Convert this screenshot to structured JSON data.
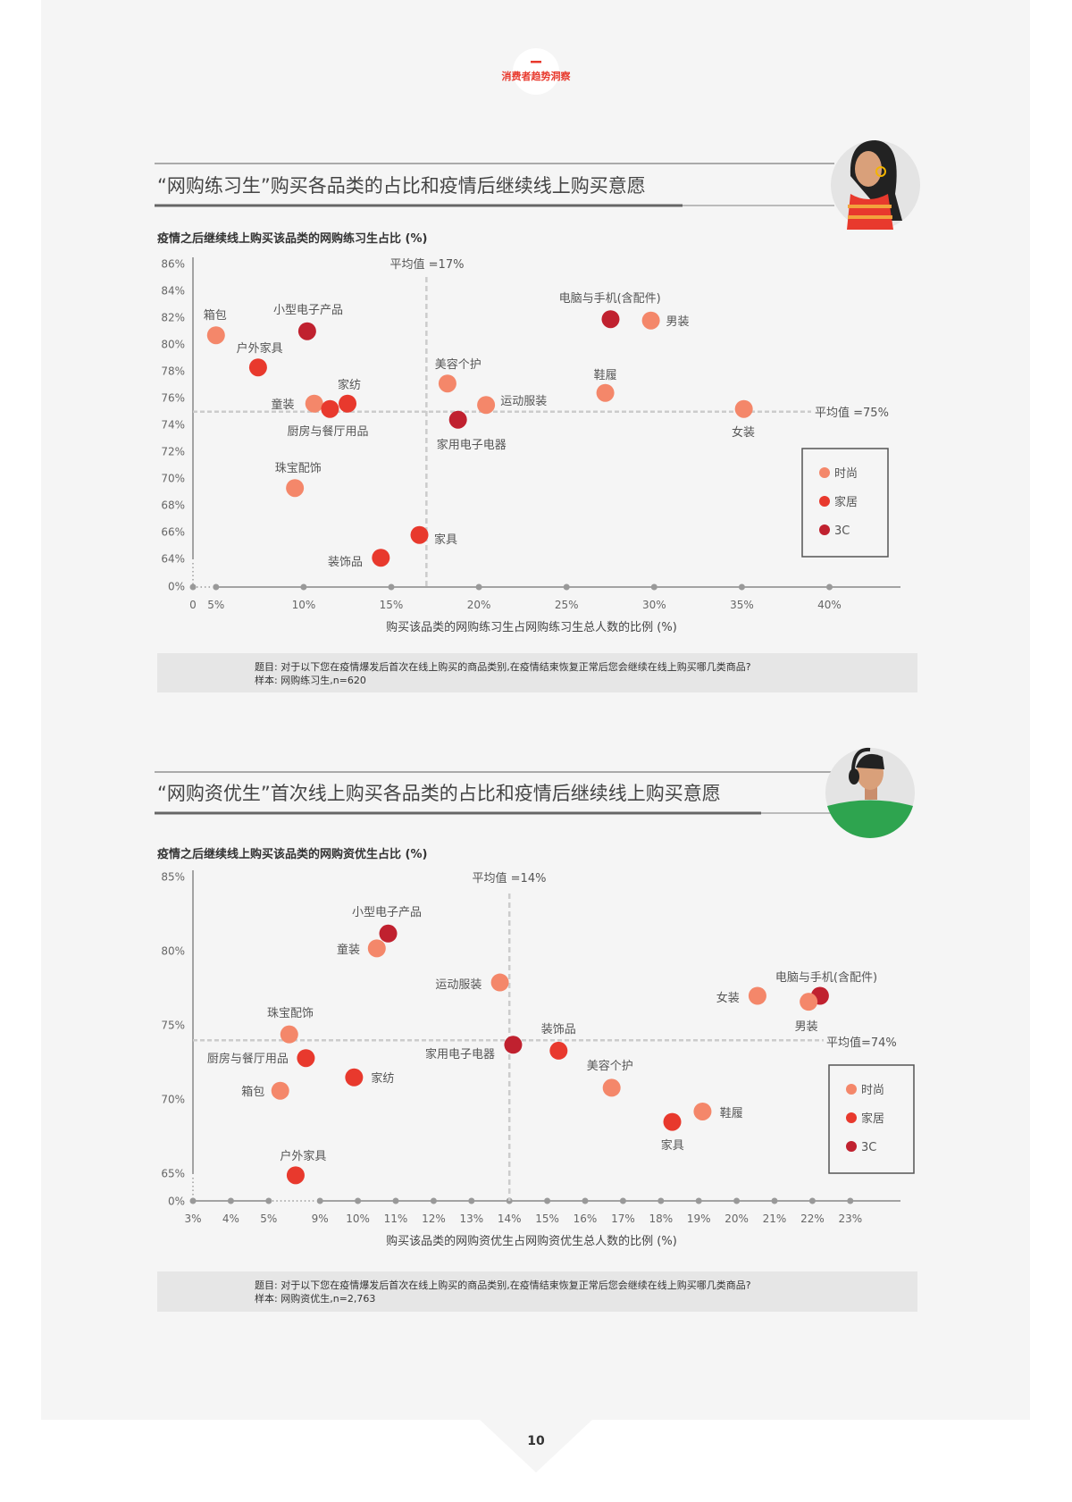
{
  "header": {
    "section_label": "消费者趋势洞察"
  },
  "page_number": "10",
  "colors": {
    "时尚": "#f4876a",
    "家居": "#e8392d",
    "3C": "#c0212f",
    "accent": "#e8392d",
    "panel": "#f5f5f5"
  },
  "chart_data": [
    {
      "type": "scatter",
      "title": "“网购练习生”购买各品类的占比和疫情后继续线上购买意愿",
      "ylabel": "疫情之后继续线上购买该品类的网购练习生占比 (%)",
      "xlabel": "购买该品类的网购练习生占网购练习生总人数的比例 (%)",
      "avatar": "woman-avatar-icon",
      "xticks": [
        "0",
        "5%",
        "10%",
        "15%",
        "20%",
        "25%",
        "30%",
        "35%",
        "40%"
      ],
      "yticks": [
        "86%",
        "84%",
        "82%",
        "80%",
        "78%",
        "76%",
        "74%",
        "72%",
        "70%",
        "68%",
        "66%",
        "64%",
        "0%"
      ],
      "xlim": [
        0,
        40
      ],
      "ylim": [
        64,
        86
      ],
      "axis_break": "both",
      "avg_x": 17,
      "avg_x_label": "平均值 =17%",
      "avg_y": 75,
      "avg_y_label": "平均值 =75%",
      "legend": {
        "position": "right",
        "items": [
          "时尚",
          "家居",
          "3C"
        ]
      },
      "points": [
        {
          "name": "箱包",
          "category": "时尚",
          "x": 5.0,
          "y": 80.7
        },
        {
          "name": "小型电子产品",
          "category": "3C",
          "x": 10.2,
          "y": 81.0
        },
        {
          "name": "户外家具",
          "category": "家居",
          "x": 7.4,
          "y": 78.3
        },
        {
          "name": "电脑与手机(含配件)",
          "category": "3C",
          "x": 27.5,
          "y": 81.9
        },
        {
          "name": "男装",
          "category": "时尚",
          "x": 29.8,
          "y": 81.8
        },
        {
          "name": "美容个护",
          "category": "时尚",
          "x": 18.2,
          "y": 77.1
        },
        {
          "name": "鞋履",
          "category": "时尚",
          "x": 27.2,
          "y": 76.4
        },
        {
          "name": "家纺",
          "category": "家居",
          "x": 12.5,
          "y": 75.6
        },
        {
          "name": "童装",
          "category": "时尚",
          "x": 10.6,
          "y": 75.6
        },
        {
          "name": "厨房与餐厅用品",
          "category": "家居",
          "x": 11.5,
          "y": 75.2
        },
        {
          "name": "运动服装",
          "category": "时尚",
          "x": 20.4,
          "y": 75.5
        },
        {
          "name": "家用电子电器",
          "category": "3C",
          "x": 18.8,
          "y": 74.4
        },
        {
          "name": "女装",
          "category": "时尚",
          "x": 35.1,
          "y": 75.2
        },
        {
          "name": "珠宝配饰",
          "category": "时尚",
          "x": 9.5,
          "y": 69.3
        },
        {
          "name": "家具",
          "category": "家居",
          "x": 16.6,
          "y": 65.8
        },
        {
          "name": "装饰品",
          "category": "家居",
          "x": 14.4,
          "y": 64.1
        }
      ],
      "note_question": "题目: 对于以下您在疫情爆发后首次在线上购买的商品类别,在疫情结束恢复正常后您会继续在线上购买哪几类商品?",
      "note_sample": "样本: 网购练习生,n=620"
    },
    {
      "type": "scatter",
      "title": "“网购资优生”首次线上购买各品类的占比和疫情后继续线上购买意愿",
      "ylabel": "疫情之后继续线上购买该品类的网购资优生占比 (%)",
      "xlabel": "购买该品类的网购资优生占网购资优生总人数的比例 (%)",
      "avatar": "man-headphones-avatar-icon",
      "xticks": [
        "3%",
        "4%",
        "5%",
        "9%",
        "10%",
        "11%",
        "12%",
        "13%",
        "14%",
        "15%",
        "16%",
        "17%",
        "18%",
        "19%",
        "20%",
        "21%",
        "22%",
        "23%"
      ],
      "yticks": [
        "85%",
        "80%",
        "75%",
        "70%",
        "65%",
        "0%"
      ],
      "xlim": [
        3,
        23
      ],
      "ylim": [
        65,
        85
      ],
      "axis_break": "both",
      "avg_x": 14,
      "avg_x_label": "平均值 =14%",
      "avg_y": 74,
      "avg_y_label": "平均值=74%",
      "legend": {
        "position": "right",
        "items": [
          "时尚",
          "家居",
          "3C"
        ]
      },
      "points": [
        {
          "name": "小型电子产品",
          "category": "3C",
          "x": 10.8,
          "y": 81.2
        },
        {
          "name": "童装",
          "category": "时尚",
          "x": 10.5,
          "y": 80.2
        },
        {
          "name": "运动服装",
          "category": "时尚",
          "x": 13.75,
          "y": 77.9
        },
        {
          "name": "女装",
          "category": "时尚",
          "x": 20.55,
          "y": 77.0
        },
        {
          "name": "电脑与手机(含配件)",
          "category": "3C",
          "x": 22.2,
          "y": 77.0
        },
        {
          "name": "男装",
          "category": "时尚",
          "x": 21.9,
          "y": 76.6
        },
        {
          "name": "珠宝配饰",
          "category": "时尚",
          "x": 6.6,
          "y": 74.4
        },
        {
          "name": "装饰品",
          "category": "家居",
          "x": 15.3,
          "y": 73.3
        },
        {
          "name": "家用电子电器",
          "category": "3C",
          "x": 14.1,
          "y": 73.7
        },
        {
          "name": "美容个护",
          "category": "时尚",
          "x": 16.7,
          "y": 70.8
        },
        {
          "name": "厨房与餐厅用品",
          "category": "家居",
          "x": 7.9,
          "y": 72.8
        },
        {
          "name": "家纺",
          "category": "家居",
          "x": 9.9,
          "y": 71.5
        },
        {
          "name": "箱包",
          "category": "时尚",
          "x": 5.9,
          "y": 70.6
        },
        {
          "name": "鞋履",
          "category": "时尚",
          "x": 19.1,
          "y": 69.2
        },
        {
          "name": "家具",
          "category": "家居",
          "x": 18.3,
          "y": 68.5
        },
        {
          "name": "户外家具",
          "category": "家居",
          "x": 7.1,
          "y": 64.9
        }
      ],
      "note_question": "题目: 对于以下您在疫情爆发后首次在线上购买的商品类别,在疫情结束恢复正常后您会继续在线上购买哪几类商品?",
      "note_sample": "样本: 网购资优生,n=2,763"
    }
  ]
}
